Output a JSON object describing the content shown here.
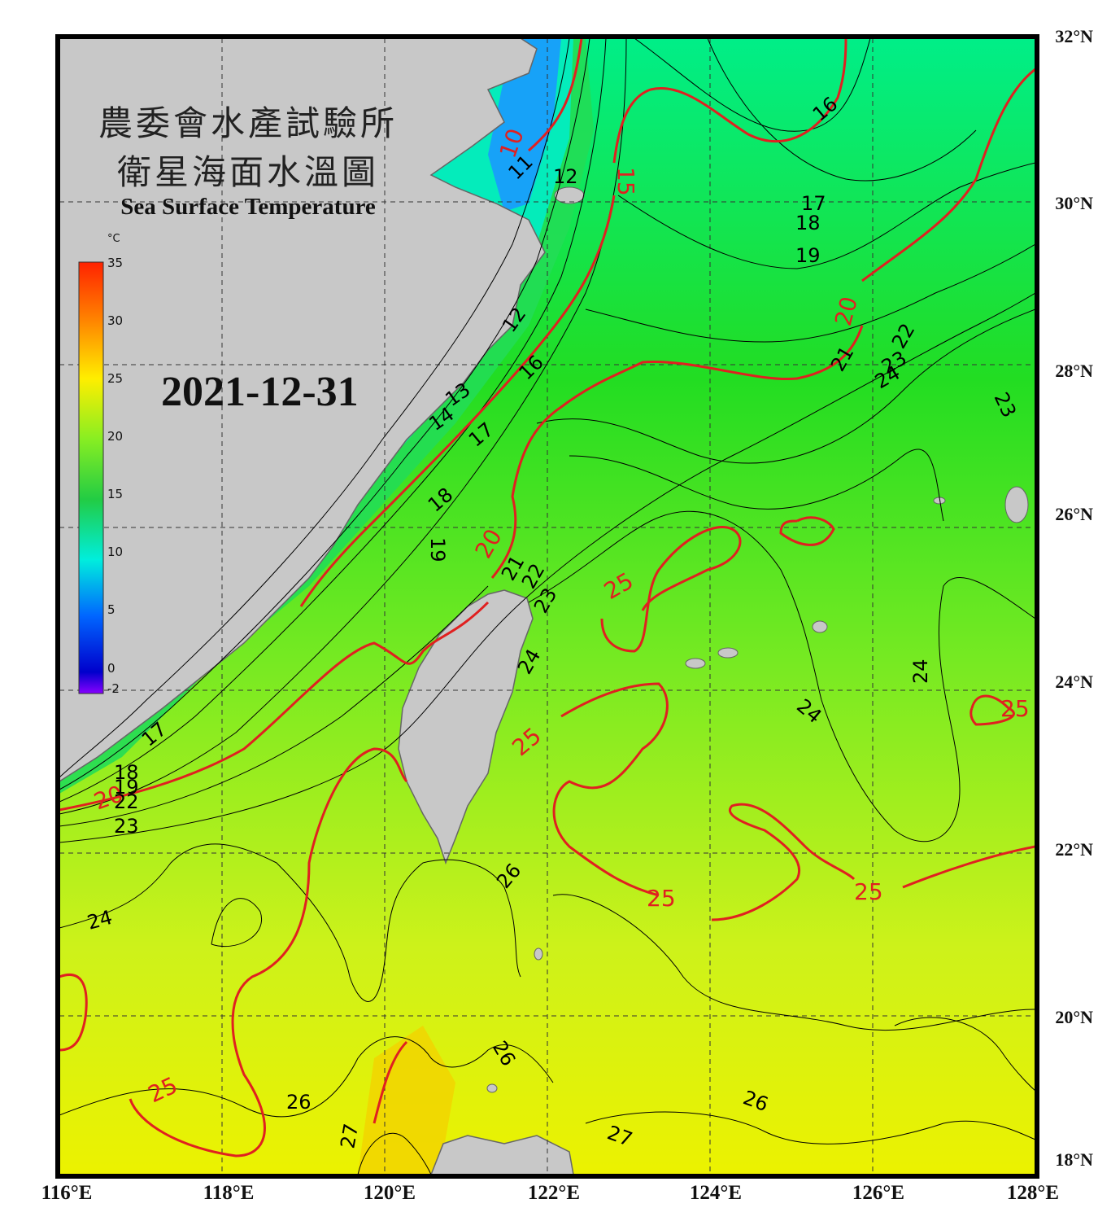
{
  "header": {
    "title_line1": "農委會水產試驗所",
    "title_line2": "衛星海面水溫圖",
    "title_en": "Sea Surface Temperature",
    "date": "2021-12-31"
  },
  "colorbar": {
    "unit": "°C",
    "ticks": [
      "35",
      "30",
      "25",
      "20",
      "15",
      "10",
      "5",
      "0",
      "-2"
    ]
  },
  "axes": {
    "lat_labels": [
      "32°N",
      "30°N",
      "28°N",
      "26°N",
      "24°N",
      "22°N",
      "20°N",
      "18°N"
    ],
    "lon_labels": [
      "116°E",
      "118°E",
      "120°E",
      "122°E",
      "124°E",
      "126°E",
      "128°E"
    ]
  },
  "contours": {
    "red_labels": [
      "10",
      "15",
      "20",
      "20",
      "20",
      "25",
      "25",
      "25",
      "25",
      "25",
      "25"
    ],
    "black_labels": [
      "11",
      "12",
      "12",
      "13",
      "14",
      "16",
      "16",
      "17",
      "17",
      "17",
      "18",
      "18",
      "18",
      "19",
      "19",
      "19",
      "21",
      "21",
      "22",
      "22",
      "22",
      "23",
      "23",
      "23",
      "23",
      "24",
      "24",
      "24",
      "24",
      "24",
      "26",
      "26",
      "26",
      "26",
      "27",
      "27"
    ]
  },
  "colors": {
    "contour_major": "#e02020",
    "contour_minor": "#000000",
    "land": "#c8c8c8"
  }
}
